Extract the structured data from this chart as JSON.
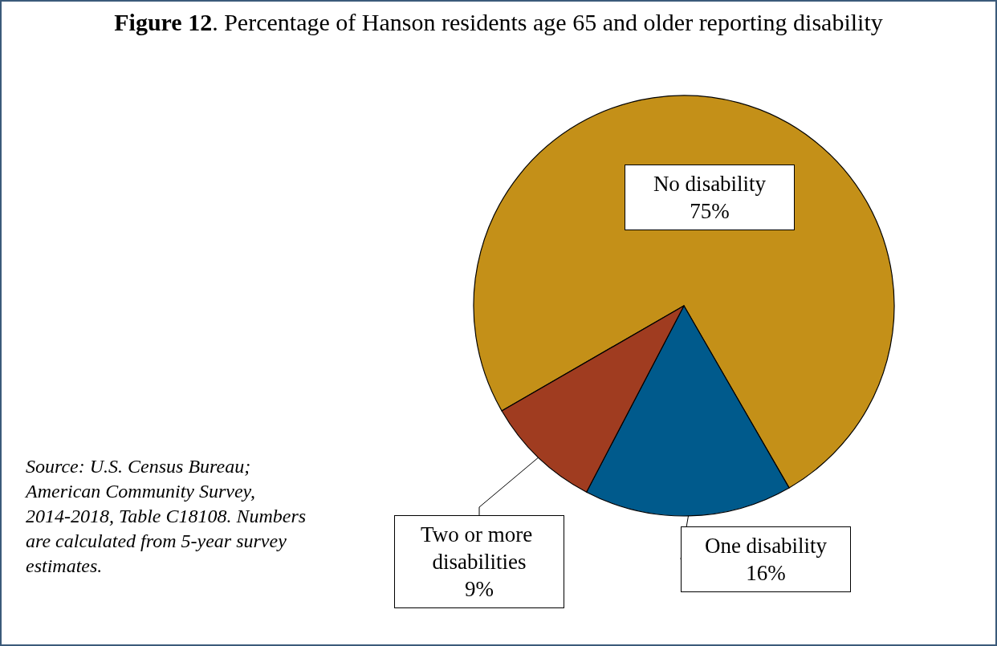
{
  "chart_data": {
    "type": "pie",
    "title": "Figure 12. Percentage of Hanson residents age 65 and older reporting disability",
    "categories": [
      "No disability",
      "One disability",
      "Two or more disabilities"
    ],
    "values": [
      75,
      16,
      9
    ],
    "colors": [
      "#c49018",
      "#005a8c",
      "#a03c20"
    ],
    "value_labels": [
      "75%",
      "16%",
      "9%"
    ],
    "legend": false,
    "annotations": [
      "Source: U.S. Census Bureau; American Community Survey, 2014-2018, Table C18108. Numbers are calculated from 5-year survey estimates."
    ]
  }
}
